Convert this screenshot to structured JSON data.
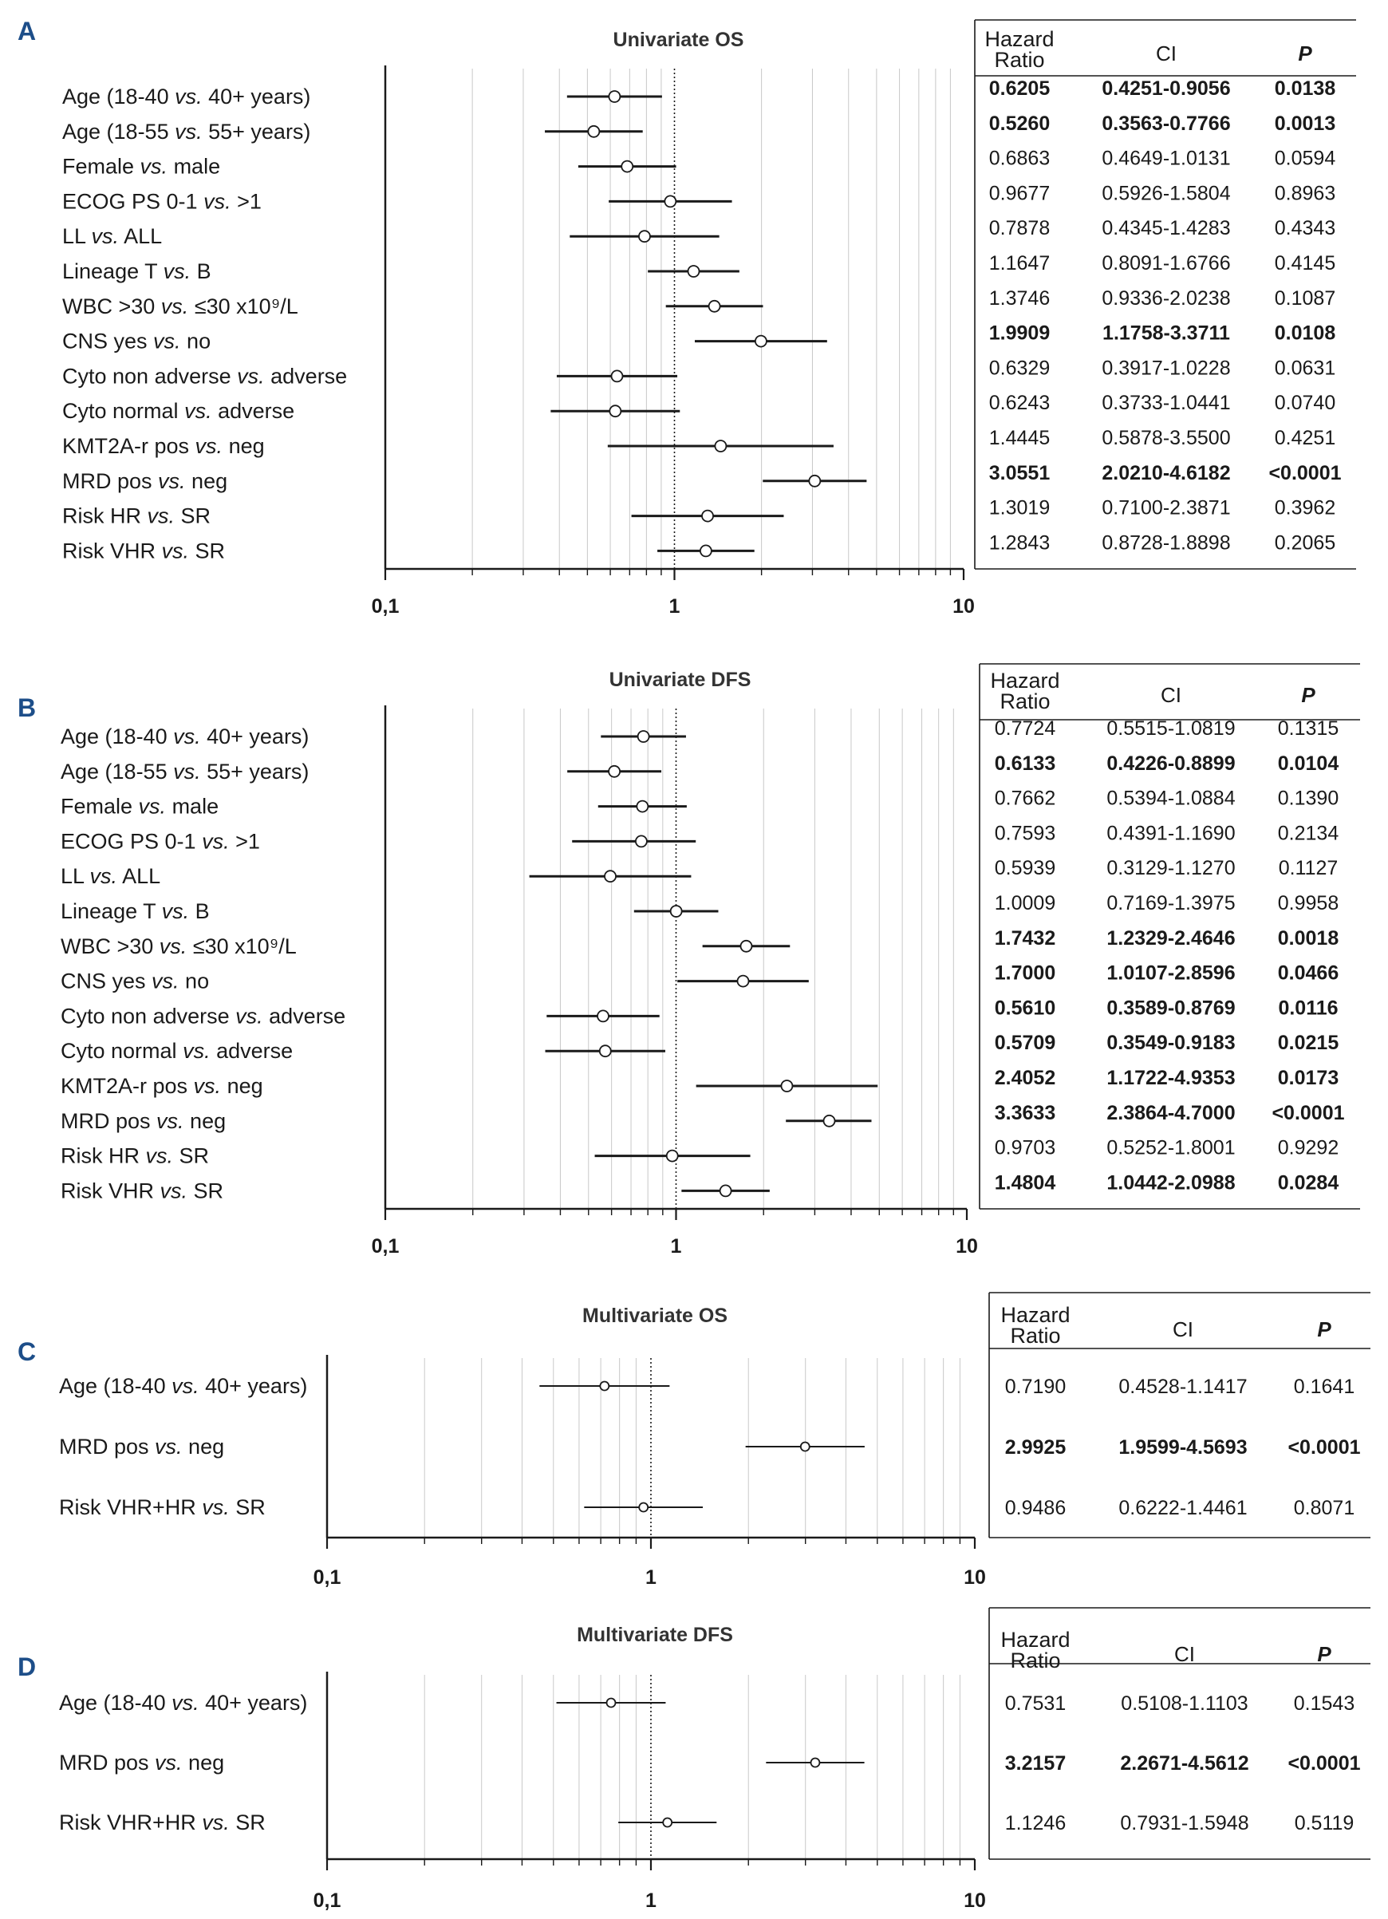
{
  "colors": {
    "panel_letter": "#1d4e89",
    "ink": "#1a1a1a",
    "grid": "#c8c8c8",
    "marker_fill": "#ffffff"
  },
  "table_headers": {
    "hr_line1": "Hazard",
    "hr_line2": "Ratio",
    "ci": "CI",
    "p": "P"
  },
  "chart_data": [
    {
      "type": "forest",
      "panel": "A",
      "title": "Univariate OS",
      "x_scale": "log",
      "xlim": [
        0.1,
        10
      ],
      "x_ticks": [
        "0,1",
        "1",
        "10"
      ],
      "reference_line": 1,
      "rows": [
        {
          "label": "Age (18-40 vs. 40+ years)",
          "hr": 0.6205,
          "lo": 0.4251,
          "hi": 0.9056,
          "hr_text": "0.6205",
          "ci_text": "0.4251-0.9056",
          "p_text": "0.0138",
          "sig": true
        },
        {
          "label": "Age (18-55 vs. 55+ years)",
          "hr": 0.526,
          "lo": 0.3563,
          "hi": 0.7766,
          "hr_text": "0.5260",
          "ci_text": "0.3563-0.7766",
          "p_text": "0.0013",
          "sig": true
        },
        {
          "label": "Female vs. male",
          "hr": 0.6863,
          "lo": 0.4649,
          "hi": 1.0131,
          "hr_text": "0.6863",
          "ci_text": "0.4649-1.0131",
          "p_text": "0.0594",
          "sig": false
        },
        {
          "label": "ECOG PS 0-1 vs. >1",
          "hr": 0.9677,
          "lo": 0.5926,
          "hi": 1.5804,
          "hr_text": "0.9677",
          "ci_text": "0.5926-1.5804",
          "p_text": "0.8963",
          "sig": false
        },
        {
          "label": "LL vs. ALL",
          "hr": 0.7878,
          "lo": 0.4345,
          "hi": 1.4283,
          "hr_text": "0.7878",
          "ci_text": "0.4345-1.4283",
          "p_text": "0.4343",
          "sig": false
        },
        {
          "label": "Lineage T vs. B",
          "hr": 1.1647,
          "lo": 0.8091,
          "hi": 1.6766,
          "hr_text": "1.1647",
          "ci_text": "0.8091-1.6766",
          "p_text": "0.4145",
          "sig": false
        },
        {
          "label": "WBC >30 vs. ≤30 x10⁹/L",
          "hr": 1.3746,
          "lo": 0.9336,
          "hi": 2.0238,
          "hr_text": "1.3746",
          "ci_text": "0.9336-2.0238",
          "p_text": "0.1087",
          "sig": false
        },
        {
          "label": "CNS yes vs. no",
          "hr": 1.9909,
          "lo": 1.1758,
          "hi": 3.3711,
          "hr_text": "1.9909",
          "ci_text": "1.1758-3.3711",
          "p_text": "0.0108",
          "sig": true
        },
        {
          "label": "Cyto non adverse vs. adverse",
          "hr": 0.6329,
          "lo": 0.3917,
          "hi": 1.0228,
          "hr_text": "0.6329",
          "ci_text": "0.3917-1.0228",
          "p_text": "0.0631",
          "sig": false
        },
        {
          "label": "Cyto normal vs. adverse",
          "hr": 0.6243,
          "lo": 0.3733,
          "hi": 1.0441,
          "hr_text": "0.6243",
          "ci_text": "0.3733-1.0441",
          "p_text": "0.0740",
          "sig": false
        },
        {
          "label": "KMT2A-r pos vs. neg",
          "hr": 1.4445,
          "lo": 0.5878,
          "hi": 3.55,
          "hr_text": "1.4445",
          "ci_text": "0.5878-3.5500",
          "p_text": "0.4251",
          "sig": false
        },
        {
          "label": "MRD pos vs. neg",
          "hr": 3.0551,
          "lo": 2.021,
          "hi": 4.6182,
          "hr_text": "3.0551",
          "ci_text": "2.0210-4.6182",
          "p_text": "<0.0001",
          "sig": true
        },
        {
          "label": "Risk HR vs. SR",
          "hr": 1.3019,
          "lo": 0.71,
          "hi": 2.3871,
          "hr_text": "1.3019",
          "ci_text": "0.7100-2.3871",
          "p_text": "0.3962",
          "sig": false
        },
        {
          "label": "Risk VHR vs. SR",
          "hr": 1.2843,
          "lo": 0.8728,
          "hi": 1.8898,
          "hr_text": "1.2843",
          "ci_text": "0.8728-1.8898",
          "p_text": "0.2065",
          "sig": false
        }
      ]
    },
    {
      "type": "forest",
      "panel": "B",
      "title": "Univariate DFS",
      "x_scale": "log",
      "xlim": [
        0.1,
        10
      ],
      "x_ticks": [
        "0,1",
        "1",
        "10"
      ],
      "reference_line": 1,
      "rows": [
        {
          "label": "Age (18-40 vs. 40+ years)",
          "hr": 0.7724,
          "lo": 0.5515,
          "hi": 1.0819,
          "hr_text": "0.7724",
          "ci_text": "0.5515-1.0819",
          "p_text": "0.1315",
          "sig": false
        },
        {
          "label": "Age (18-55 vs. 55+ years)",
          "hr": 0.6133,
          "lo": 0.4226,
          "hi": 0.8899,
          "hr_text": "0.6133",
          "ci_text": "0.4226-0.8899",
          "p_text": "0.0104",
          "sig": true
        },
        {
          "label": "Female vs. male",
          "hr": 0.7662,
          "lo": 0.5394,
          "hi": 1.0884,
          "hr_text": "0.7662",
          "ci_text": "0.5394-1.0884",
          "p_text": "0.1390",
          "sig": false
        },
        {
          "label": "ECOG PS 0-1 vs. >1",
          "hr": 0.7593,
          "lo": 0.4391,
          "hi": 1.169,
          "hr_text": "0.7593",
          "ci_text": "0.4391-1.1690",
          "p_text": "0.2134",
          "sig": false
        },
        {
          "label": "LL vs. ALL",
          "hr": 0.5939,
          "lo": 0.3129,
          "hi": 1.127,
          "hr_text": "0.5939",
          "ci_text": "0.3129-1.1270",
          "p_text": "0.1127",
          "sig": false
        },
        {
          "label": "Lineage T vs. B",
          "hr": 1.0009,
          "lo": 0.7169,
          "hi": 1.3975,
          "hr_text": "1.0009",
          "ci_text": "0.7169-1.3975",
          "p_text": "0.9958",
          "sig": false
        },
        {
          "label": "WBC >30 vs. ≤30 x10⁹/L",
          "hr": 1.7432,
          "lo": 1.2329,
          "hi": 2.4646,
          "hr_text": "1.7432",
          "ci_text": "1.2329-2.4646",
          "p_text": "0.0018",
          "sig": true
        },
        {
          "label": "CNS yes vs. no",
          "hr": 1.7,
          "lo": 1.0107,
          "hi": 2.8596,
          "hr_text": "1.7000",
          "ci_text": "1.0107-2.8596",
          "p_text": "0.0466",
          "sig": true
        },
        {
          "label": "Cyto non adverse vs. adverse",
          "hr": 0.561,
          "lo": 0.3589,
          "hi": 0.8769,
          "hr_text": "0.5610",
          "ci_text": "0.3589-0.8769",
          "p_text": "0.0116",
          "sig": true
        },
        {
          "label": "Cyto normal vs. adverse",
          "hr": 0.5709,
          "lo": 0.3549,
          "hi": 0.9183,
          "hr_text": "0.5709",
          "ci_text": "0.3549-0.9183",
          "p_text": "0.0215",
          "sig": true
        },
        {
          "label": "KMT2A-r pos vs. neg",
          "hr": 2.4052,
          "lo": 1.1722,
          "hi": 4.9353,
          "hr_text": "2.4052",
          "ci_text": "1.1722-4.9353",
          "p_text": "0.0173",
          "sig": true
        },
        {
          "label": "MRD pos vs. neg",
          "hr": 3.3633,
          "lo": 2.3864,
          "hi": 4.7,
          "hr_text": "3.3633",
          "ci_text": "2.3864-4.7000",
          "p_text": "<0.0001",
          "sig": true
        },
        {
          "label": "Risk HR vs. SR",
          "hr": 0.9703,
          "lo": 0.5252,
          "hi": 1.8001,
          "hr_text": "0.9703",
          "ci_text": "0.5252-1.8001",
          "p_text": "0.9292",
          "sig": false
        },
        {
          "label": "Risk VHR vs. SR",
          "hr": 1.4804,
          "lo": 1.0442,
          "hi": 2.0988,
          "hr_text": "1.4804",
          "ci_text": "1.0442-2.0988",
          "p_text": "0.0284",
          "sig": true
        }
      ]
    },
    {
      "type": "forest",
      "panel": "C",
      "title": "Multivariate OS",
      "x_scale": "log",
      "xlim": [
        0.1,
        10
      ],
      "x_ticks": [
        "0,1",
        "1",
        "10"
      ],
      "reference_line": 1,
      "rows": [
        {
          "label": "Age (18-40 vs. 40+ years)",
          "hr": 0.719,
          "lo": 0.4528,
          "hi": 1.1417,
          "hr_text": "0.7190",
          "ci_text": "0.4528-1.1417",
          "p_text": "0.1641",
          "sig": false
        },
        {
          "label": "MRD pos vs. neg",
          "hr": 2.9925,
          "lo": 1.9599,
          "hi": 4.5693,
          "hr_text": "2.9925",
          "ci_text": "1.9599-4.5693",
          "p_text": "<0.0001",
          "sig": true
        },
        {
          "label": "Risk VHR+HR vs. SR",
          "hr": 0.9486,
          "lo": 0.6222,
          "hi": 1.4461,
          "hr_text": "0.9486",
          "ci_text": "0.6222-1.4461",
          "p_text": "0.8071",
          "sig": false
        }
      ]
    },
    {
      "type": "forest",
      "panel": "D",
      "title": "Multivariate DFS",
      "x_scale": "log",
      "xlim": [
        0.1,
        10
      ],
      "x_ticks": [
        "0,1",
        "1",
        "10"
      ],
      "reference_line": 1,
      "rows": [
        {
          "label": "Age (18-40 vs. 40+ years)",
          "hr": 0.7531,
          "lo": 0.5108,
          "hi": 1.1103,
          "hr_text": "0.7531",
          "ci_text": "0.5108-1.1103",
          "p_text": "0.1543",
          "sig": false
        },
        {
          "label": "MRD pos vs. neg",
          "hr": 3.2157,
          "lo": 2.2671,
          "hi": 4.5612,
          "hr_text": "3.2157",
          "ci_text": "2.2671-4.5612",
          "p_text": "<0.0001",
          "sig": true
        },
        {
          "label": "Risk VHR+HR vs. SR",
          "hr": 1.1246,
          "lo": 0.7931,
          "hi": 1.5948,
          "hr_text": "1.1246",
          "ci_text": "0.7931-1.5948",
          "p_text": "0.5119",
          "sig": false
        }
      ]
    }
  ]
}
